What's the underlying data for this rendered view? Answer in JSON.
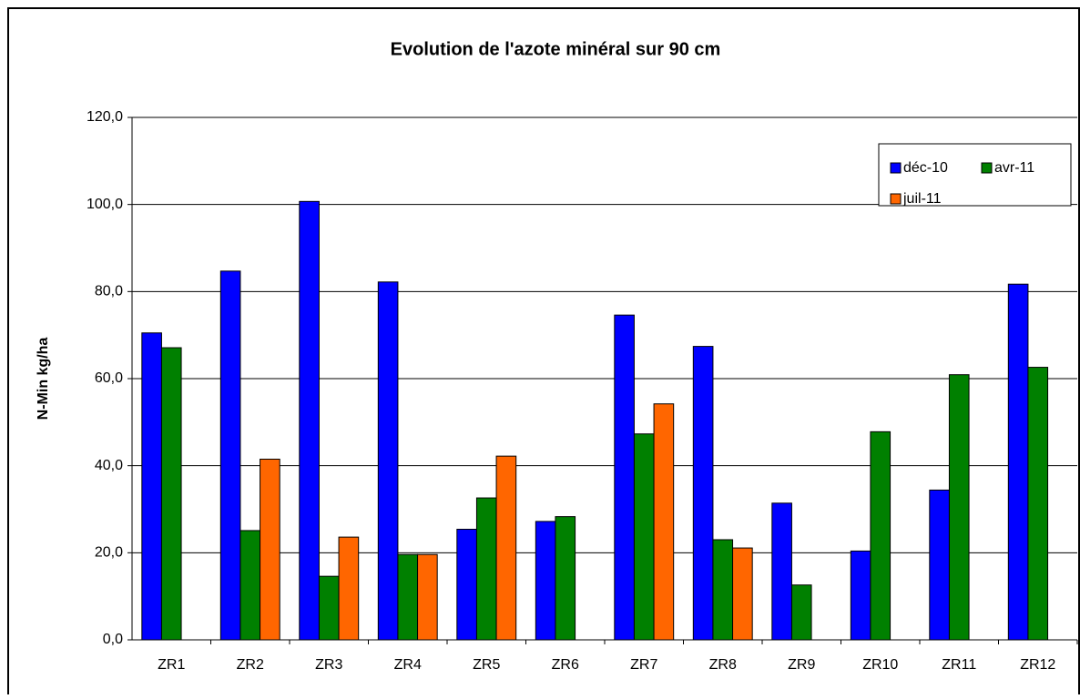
{
  "chart_data": {
    "type": "bar",
    "title": "Evolution de l'azote minéral sur 90 cm",
    "y_label": "N-Min kg/ha",
    "categories": [
      "ZR1",
      "ZR2",
      "ZR3",
      "ZR4",
      "ZR5",
      "ZR6",
      "ZR7",
      "ZR8",
      "ZR9",
      "ZR10",
      "ZR11",
      "ZR12"
    ],
    "series": [
      {
        "name": "déc-10",
        "color": "#0000ff",
        "values": [
          70.5,
          84.7,
          100.7,
          82.2,
          25.4,
          27.2,
          74.6,
          67.4,
          31.4,
          20.4,
          34.4,
          81.7
        ]
      },
      {
        "name": "avr-11",
        "color": "#008000",
        "values": [
          67.1,
          25.1,
          14.6,
          19.6,
          32.6,
          28.3,
          47.3,
          23.0,
          12.6,
          47.8,
          60.9,
          62.6
        ]
      },
      {
        "name": "juil-11",
        "color": "#ff6600",
        "values": [
          null,
          41.5,
          23.6,
          19.6,
          42.2,
          null,
          54.2,
          21.1,
          null,
          null,
          null,
          null
        ]
      }
    ],
    "ylim": [
      0,
      120
    ],
    "yticks": [
      {
        "value": 0,
        "label": "0,0"
      },
      {
        "value": 20,
        "label": "20,0"
      },
      {
        "value": 40,
        "label": "40,0"
      },
      {
        "value": 60,
        "label": "60,0"
      },
      {
        "value": 80,
        "label": "80,0"
      },
      {
        "value": 100,
        "label": "100,0"
      },
      {
        "value": 120,
        "label": "120,0"
      }
    ],
    "grid": true,
    "legend": "top-right"
  }
}
